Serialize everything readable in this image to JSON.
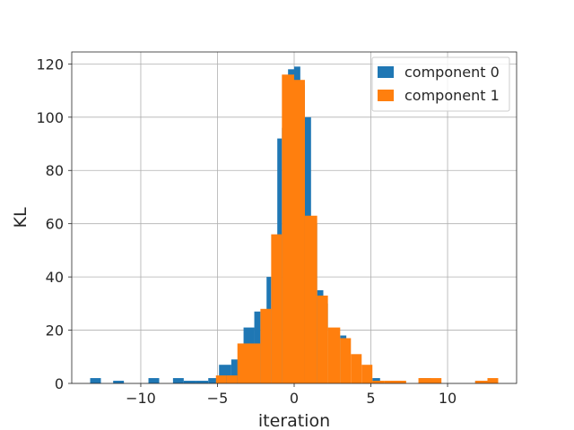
{
  "chart_data": {
    "type": "bar",
    "title": "",
    "xlabel": "iteration",
    "ylabel": "KL",
    "xlim": [
      -14.5,
      14.5
    ],
    "ylim": [
      0,
      124.5
    ],
    "xticks": [
      -10,
      -5,
      0,
      5,
      10
    ],
    "xtick_labels": [
      "−10",
      "−5",
      "0",
      "5",
      "10"
    ],
    "yticks": [
      0,
      20,
      40,
      60,
      80,
      100,
      120
    ],
    "ytick_labels": [
      "0",
      "20",
      "40",
      "60",
      "80",
      "100",
      "120"
    ],
    "grid": true,
    "legend_position": "top-right",
    "series": [
      {
        "name": "component 0",
        "color": "#1f77b4",
        "bins": [
          [
            -13.3,
            -12.6,
            2
          ],
          [
            -11.8,
            -11.1,
            1
          ],
          [
            -9.5,
            -8.8,
            2
          ],
          [
            -7.9,
            -7.2,
            2
          ],
          [
            -7.2,
            -6.4,
            1
          ],
          [
            -6.4,
            -5.6,
            1
          ],
          [
            -5.6,
            -4.9,
            2
          ],
          [
            -4.9,
            -4.1,
            7
          ],
          [
            -4.1,
            -3.3,
            9
          ],
          [
            -3.3,
            -2.6,
            21
          ],
          [
            -2.6,
            -2.2,
            27
          ],
          [
            -1.8,
            -1.5,
            40
          ],
          [
            -1.1,
            -0.8,
            92
          ],
          [
            -0.8,
            -0.4,
            96
          ],
          [
            -0.4,
            0.0,
            118
          ],
          [
            0.0,
            0.4,
            119
          ],
          [
            0.4,
            0.7,
            112
          ],
          [
            0.7,
            1.1,
            100
          ],
          [
            1.1,
            1.5,
            60
          ],
          [
            1.5,
            1.9,
            35
          ],
          [
            1.9,
            2.2,
            30
          ],
          [
            3.0,
            3.4,
            18
          ],
          [
            5.1,
            5.6,
            2
          ],
          [
            6.3,
            7.0,
            1
          ],
          [
            8.2,
            8.9,
            2
          ],
          [
            11.8,
            12.6,
            1
          ]
        ]
      },
      {
        "name": "component 1",
        "color": "#ff7f0e",
        "bins": [
          [
            -5.1,
            -4.4,
            3
          ],
          [
            -4.4,
            -3.7,
            3
          ],
          [
            -3.7,
            -2.2,
            15
          ],
          [
            -2.2,
            -1.5,
            28
          ],
          [
            -1.5,
            -0.8,
            56
          ],
          [
            -0.8,
            0.0,
            116
          ],
          [
            0.0,
            0.7,
            114
          ],
          [
            0.7,
            1.5,
            63
          ],
          [
            1.5,
            2.2,
            33
          ],
          [
            2.2,
            3.0,
            21
          ],
          [
            3.0,
            3.7,
            17
          ],
          [
            3.7,
            4.4,
            11
          ],
          [
            4.4,
            5.1,
            7
          ],
          [
            5.1,
            5.9,
            1
          ],
          [
            5.9,
            7.3,
            1
          ],
          [
            8.1,
            9.6,
            2
          ],
          [
            11.8,
            12.6,
            1
          ],
          [
            12.6,
            13.3,
            2
          ]
        ]
      }
    ]
  }
}
